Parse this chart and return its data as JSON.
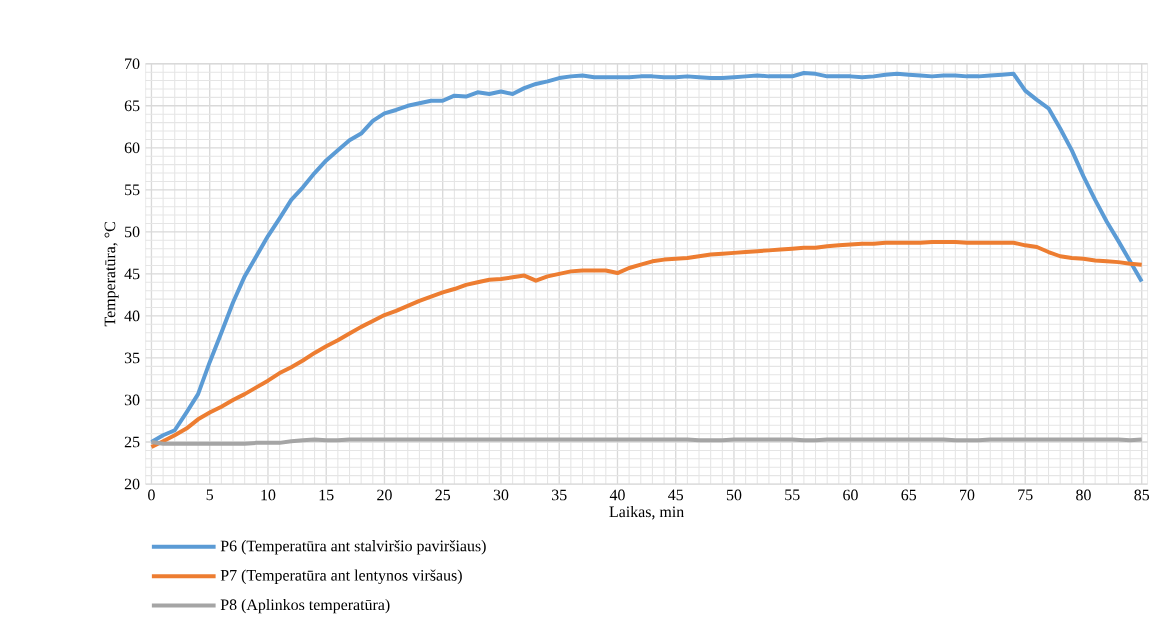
{
  "chart_data": {
    "type": "line",
    "xlabel": "Laikas, min",
    "ylabel": "Temperatūra, °C",
    "x": [
      0,
      1,
      2,
      3,
      4,
      5,
      6,
      7,
      8,
      9,
      10,
      11,
      12,
      13,
      14,
      15,
      16,
      17,
      18,
      19,
      20,
      21,
      22,
      23,
      24,
      25,
      26,
      27,
      28,
      29,
      30,
      31,
      32,
      33,
      34,
      35,
      36,
      37,
      38,
      39,
      40,
      41,
      42,
      43,
      44,
      45,
      46,
      47,
      48,
      49,
      50,
      51,
      52,
      53,
      54,
      55,
      56,
      57,
      58,
      59,
      60,
      61,
      62,
      63,
      64,
      65,
      66,
      67,
      68,
      69,
      70,
      71,
      72,
      73,
      74,
      75,
      76,
      77,
      78,
      79,
      80,
      81,
      82,
      83,
      84,
      85
    ],
    "series": [
      {
        "name": "P6 (Temperatūra ant stalviršio paviršiaus)",
        "color": "#5b9bd5",
        "values": [
          25.0,
          25.8,
          26.4,
          28.5,
          30.7,
          34.5,
          38.0,
          41.6,
          44.7,
          47.1,
          49.5,
          51.6,
          53.8,
          55.3,
          57.0,
          58.5,
          59.7,
          60.9,
          61.7,
          63.2,
          64.1,
          64.5,
          65.0,
          65.3,
          65.6,
          65.6,
          66.2,
          66.1,
          66.6,
          66.4,
          66.7,
          66.4,
          67.1,
          67.6,
          67.9,
          68.3,
          68.5,
          68.6,
          68.4,
          68.4,
          68.4,
          68.4,
          68.5,
          68.5,
          68.4,
          68.4,
          68.5,
          68.4,
          68.3,
          68.3,
          68.4,
          68.5,
          68.6,
          68.5,
          68.5,
          68.5,
          68.9,
          68.8,
          68.5,
          68.5,
          68.5,
          68.4,
          68.5,
          68.7,
          68.8,
          68.7,
          68.6,
          68.5,
          68.6,
          68.6,
          68.5,
          68.5,
          68.6,
          68.7,
          68.8,
          66.8,
          65.7,
          64.7,
          62.3,
          59.7,
          56.6,
          53.8,
          51.2,
          48.9,
          46.5,
          44.1
        ]
      },
      {
        "name": "P7 (Temperatūra ant lentynos viršaus)",
        "color": "#ed7d31",
        "values": [
          24.4,
          25.1,
          25.8,
          26.6,
          27.7,
          28.5,
          29.2,
          30.0,
          30.7,
          31.5,
          32.3,
          33.2,
          33.9,
          34.7,
          35.6,
          36.4,
          37.1,
          37.9,
          38.7,
          39.4,
          40.1,
          40.6,
          41.2,
          41.8,
          42.3,
          42.8,
          43.2,
          43.7,
          44.0,
          44.3,
          44.4,
          44.6,
          44.8,
          44.2,
          44.7,
          45.0,
          45.3,
          45.4,
          45.4,
          45.4,
          45.1,
          45.7,
          46.1,
          46.5,
          46.7,
          46.8,
          46.9,
          47.1,
          47.3,
          47.4,
          47.5,
          47.6,
          47.7,
          47.8,
          47.9,
          48.0,
          48.1,
          48.1,
          48.3,
          48.4,
          48.5,
          48.6,
          48.6,
          48.7,
          48.7,
          48.7,
          48.7,
          48.8,
          48.8,
          48.8,
          48.7,
          48.7,
          48.7,
          48.7,
          48.7,
          48.4,
          48.2,
          47.6,
          47.1,
          46.9,
          46.8,
          46.6,
          46.5,
          46.4,
          46.2,
          46.1
        ]
      },
      {
        "name": "P8 (Aplinkos temperatūra)",
        "color": "#a5a5a5",
        "values": [
          25.0,
          24.8,
          24.8,
          24.8,
          24.8,
          24.8,
          24.8,
          24.8,
          24.8,
          24.9,
          24.9,
          24.9,
          25.1,
          25.2,
          25.3,
          25.2,
          25.2,
          25.3,
          25.3,
          25.3,
          25.3,
          25.3,
          25.3,
          25.3,
          25.3,
          25.3,
          25.3,
          25.3,
          25.3,
          25.3,
          25.3,
          25.3,
          25.3,
          25.3,
          25.3,
          25.3,
          25.3,
          25.3,
          25.3,
          25.3,
          25.3,
          25.3,
          25.3,
          25.3,
          25.3,
          25.3,
          25.3,
          25.2,
          25.2,
          25.2,
          25.3,
          25.3,
          25.3,
          25.3,
          25.3,
          25.3,
          25.2,
          25.2,
          25.3,
          25.3,
          25.3,
          25.3,
          25.3,
          25.3,
          25.3,
          25.3,
          25.3,
          25.3,
          25.3,
          25.2,
          25.2,
          25.2,
          25.3,
          25.3,
          25.3,
          25.3,
          25.3,
          25.3,
          25.3,
          25.3,
          25.3,
          25.3,
          25.3,
          25.3,
          25.2,
          25.3
        ]
      }
    ],
    "xlim": [
      -0.5,
      85.5
    ],
    "ylim": [
      20,
      70
    ],
    "xticks": [
      0,
      5,
      10,
      15,
      20,
      25,
      30,
      35,
      40,
      45,
      50,
      55,
      60,
      65,
      70,
      75,
      80,
      85
    ],
    "yticks": [
      20,
      25,
      30,
      35,
      40,
      45,
      50,
      55,
      60,
      65,
      70
    ],
    "grid": true,
    "legend": "bottom left"
  }
}
